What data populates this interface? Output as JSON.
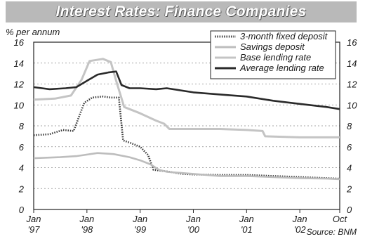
{
  "chart_data": {
    "type": "line",
    "title": "Interest Rates: Finance Companies",
    "unit_label": "% per annum",
    "source": "Source: BNM",
    "ylim": [
      0,
      16
    ],
    "yticks": [
      "0",
      "2",
      "4",
      "6",
      "8",
      "10",
      "12",
      "14",
      "16"
    ],
    "xlim": [
      1997.0,
      2002.75
    ],
    "xticks": [
      {
        "x": 1997.0,
        "top": "Jan",
        "bottom": "'97"
      },
      {
        "x": 1998.0,
        "top": "Jan",
        "bottom": "'98"
      },
      {
        "x": 1999.0,
        "top": "Jan",
        "bottom": "'99"
      },
      {
        "x": 2000.0,
        "top": "Jan",
        "bottom": "'00"
      },
      {
        "x": 2001.0,
        "top": "Jan",
        "bottom": "'01"
      },
      {
        "x": 2002.0,
        "top": "Jan",
        "bottom": "'02"
      },
      {
        "x": 2002.75,
        "top": "Oct",
        "bottom": ""
      }
    ],
    "grid": true,
    "legend_position": "top-right",
    "series": [
      {
        "name": "3-month fixed deposit",
        "color": "#3a3a3a",
        "style": "dotted",
        "points": [
          [
            1997.0,
            7.1
          ],
          [
            1997.3,
            7.2
          ],
          [
            1997.55,
            7.6
          ],
          [
            1997.75,
            7.5
          ],
          [
            1997.95,
            10.2
          ],
          [
            1998.1,
            10.7
          ],
          [
            1998.3,
            10.8
          ],
          [
            1998.45,
            10.7
          ],
          [
            1998.6,
            10.7
          ],
          [
            1998.68,
            6.6
          ],
          [
            1998.8,
            6.4
          ],
          [
            1999.0,
            6.0
          ],
          [
            1999.15,
            5.2
          ],
          [
            1999.25,
            3.8
          ],
          [
            1999.4,
            3.7
          ],
          [
            1999.55,
            3.6
          ],
          [
            1999.8,
            3.4
          ],
          [
            2000.0,
            3.35
          ],
          [
            2000.5,
            3.3
          ],
          [
            2001.0,
            3.3
          ],
          [
            2001.5,
            3.2
          ],
          [
            2002.0,
            3.1
          ],
          [
            2002.5,
            3.0
          ],
          [
            2002.75,
            2.95
          ]
        ]
      },
      {
        "name": "Savings deposit",
        "color": "#bdbdbd",
        "style": "solid",
        "points": [
          [
            1997.0,
            4.9
          ],
          [
            1997.5,
            5.0
          ],
          [
            1997.8,
            5.1
          ],
          [
            1998.2,
            5.4
          ],
          [
            1998.5,
            5.3
          ],
          [
            1998.8,
            5.0
          ],
          [
            1999.0,
            4.7
          ],
          [
            1999.2,
            4.3
          ],
          [
            1999.35,
            3.8
          ],
          [
            1999.5,
            3.6
          ],
          [
            2000.0,
            3.4
          ],
          [
            2000.5,
            3.2
          ],
          [
            2001.0,
            3.2
          ],
          [
            2001.5,
            3.1
          ],
          [
            2002.0,
            3.0
          ],
          [
            2002.5,
            2.95
          ],
          [
            2002.75,
            2.9
          ]
        ]
      },
      {
        "name": "Base lending rate",
        "color": "#c4c4c4",
        "style": "solid",
        "points": [
          [
            1997.0,
            10.5
          ],
          [
            1997.4,
            10.6
          ],
          [
            1997.7,
            10.9
          ],
          [
            1997.9,
            12.4
          ],
          [
            1998.05,
            14.2
          ],
          [
            1998.3,
            14.4
          ],
          [
            1998.45,
            14.1
          ],
          [
            1998.55,
            12.3
          ],
          [
            1998.7,
            9.8
          ],
          [
            1998.85,
            9.5
          ],
          [
            1999.0,
            9.2
          ],
          [
            1999.3,
            8.5
          ],
          [
            1999.45,
            8.2
          ],
          [
            1999.55,
            7.7
          ],
          [
            2000.0,
            7.7
          ],
          [
            2000.5,
            7.7
          ],
          [
            2001.0,
            7.6
          ],
          [
            2001.3,
            7.5
          ],
          [
            2001.35,
            7.0
          ],
          [
            2002.0,
            6.9
          ],
          [
            2002.75,
            6.9
          ]
        ]
      },
      {
        "name": "Average lending rate",
        "color": "#2a2a2a",
        "style": "solid",
        "points": [
          [
            1997.0,
            11.7
          ],
          [
            1997.3,
            11.5
          ],
          [
            1997.6,
            11.6
          ],
          [
            1997.8,
            11.7
          ],
          [
            1998.0,
            12.3
          ],
          [
            1998.2,
            12.9
          ],
          [
            1998.4,
            13.1
          ],
          [
            1998.55,
            13.2
          ],
          [
            1998.65,
            11.9
          ],
          [
            1998.8,
            11.6
          ],
          [
            1999.0,
            11.6
          ],
          [
            1999.3,
            11.5
          ],
          [
            1999.5,
            11.6
          ],
          [
            2000.0,
            11.2
          ],
          [
            2000.5,
            11.0
          ],
          [
            2001.0,
            10.8
          ],
          [
            2001.5,
            10.4
          ],
          [
            2002.0,
            10.1
          ],
          [
            2002.5,
            9.8
          ],
          [
            2002.75,
            9.6
          ]
        ]
      }
    ]
  }
}
